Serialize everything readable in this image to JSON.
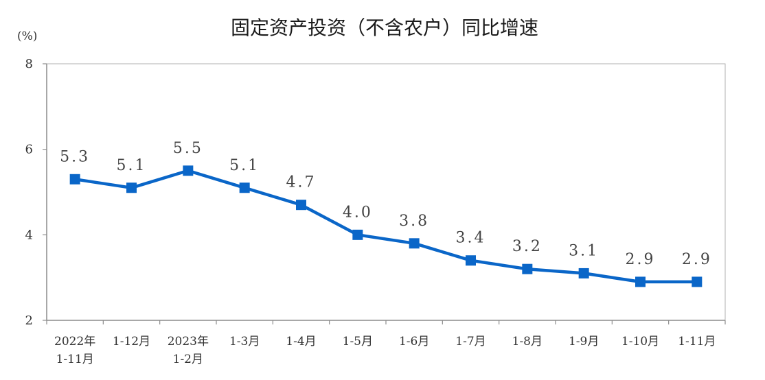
{
  "chart_data": {
    "type": "line",
    "title": "固定资产投资（不含农户）同比增速",
    "unit_label": "(%)",
    "ylim": [
      2,
      8
    ],
    "yticks": [
      "2",
      "4",
      "6",
      "8"
    ],
    "categories": [
      [
        "2022年",
        "1-11月"
      ],
      [
        "1-12月"
      ],
      [
        "2023年",
        "1-2月"
      ],
      [
        "1-3月"
      ],
      [
        "1-4月"
      ],
      [
        "1-5月"
      ],
      [
        "1-6月"
      ],
      [
        "1-7月"
      ],
      [
        "1-8月"
      ],
      [
        "1-9月"
      ],
      [
        "1-10月"
      ],
      [
        "1-11月"
      ]
    ],
    "series": [
      {
        "name": "固定资产投资（不含农户）同比增速",
        "values": [
          5.3,
          5.1,
          5.5,
          5.1,
          4.7,
          4.0,
          3.8,
          3.4,
          3.2,
          3.1,
          2.9,
          2.9
        ],
        "labels": [
          "5.3",
          "5.1",
          "5.5",
          "5.1",
          "4.7",
          "4.0",
          "3.8",
          "3.4",
          "3.2",
          "3.1",
          "2.9",
          "2.9"
        ]
      }
    ],
    "colors": {
      "line": "#0a66c8",
      "axis": "#8c8c8c"
    },
    "grid": false
  }
}
